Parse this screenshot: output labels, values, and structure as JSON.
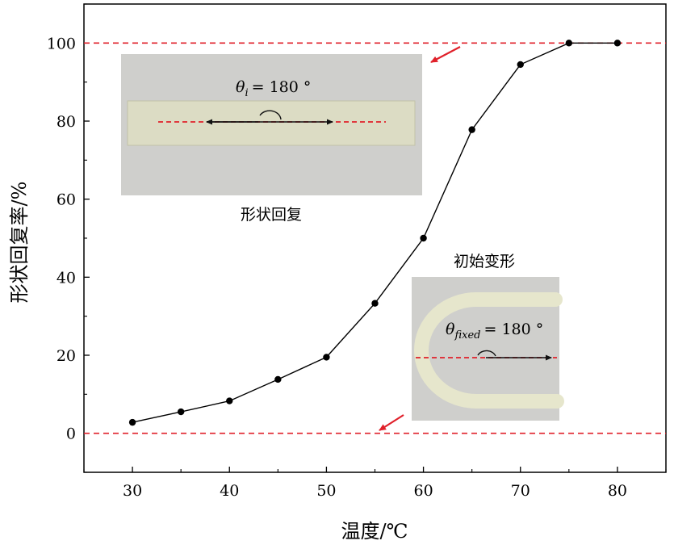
{
  "chart_data": {
    "type": "line",
    "xlabel": "温度/℃",
    "ylabel": "形状回复率/%",
    "xlim": [
      25,
      85
    ],
    "ylim": [
      -10,
      110
    ],
    "x_ticks": [
      30,
      40,
      50,
      60,
      70,
      80
    ],
    "y_ticks": [
      0,
      20,
      40,
      60,
      80,
      100
    ],
    "grid": false,
    "reference_lines": [
      0,
      100
    ],
    "series": [
      {
        "x": [
          30,
          35,
          40,
          45,
          50,
          55,
          60,
          65,
          70,
          75,
          80
        ],
        "y": [
          2.8,
          5.5,
          8.3,
          13.8,
          19.5,
          33.3,
          50.0,
          77.8,
          94.5,
          100,
          100
        ]
      }
    ],
    "insets": {
      "recovered": {
        "caption": "形状回复",
        "angle_symbol": "θ",
        "angle_subscript": "i",
        "angle_value": "= 180 °"
      },
      "initial": {
        "caption": "初始变形",
        "angle_symbol": "θ",
        "angle_subscript": "fixed",
        "angle_value": "= 180 °"
      }
    },
    "colors": {
      "line": "#000000",
      "reference": "#e0202a",
      "arrow": "#e0202a"
    }
  }
}
